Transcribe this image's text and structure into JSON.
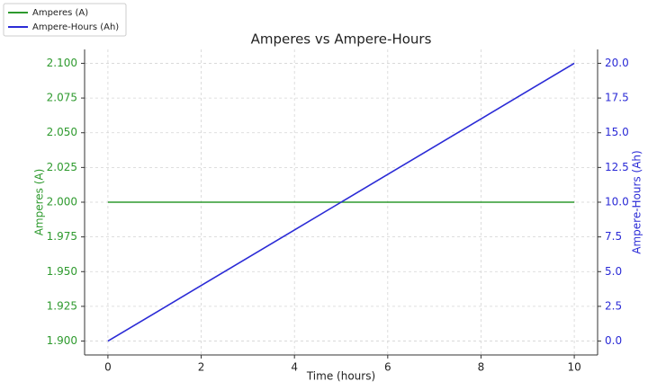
{
  "chart_data": {
    "type": "line",
    "title": "Amperes vs Ampere-Hours",
    "x_label": "Time (hours)",
    "y_label": "Amperes (A)",
    "y2_label": "Ampere-Hours (Ah)",
    "x": [
      0,
      1,
      2,
      3,
      4,
      5,
      6,
      7,
      8,
      9,
      10
    ],
    "series": [
      {
        "name": "Amperes (A)",
        "color": "#2e9a2e",
        "values": [
          2.0,
          2.0,
          2.0,
          2.0,
          2.0,
          2.0,
          2.0,
          2.0,
          2.0,
          2.0,
          2.0
        ]
      },
      {
        "name": "Ampere-Hours (Ah)",
        "color": "#2b2bd6",
        "axis": "y2",
        "values": [
          0,
          2,
          4,
          6,
          8,
          10,
          12,
          14,
          16,
          18,
          20
        ]
      }
    ],
    "xlim": [
      -0.5,
      10.5
    ],
    "xticks": [
      0,
      2,
      4,
      6,
      8,
      10
    ],
    "ylim": [
      1.89,
      2.11
    ],
    "yticks": [
      {
        "value": 1.9,
        "label": "1.900"
      },
      {
        "value": 1.925,
        "label": "1.925"
      },
      {
        "value": 1.95,
        "label": "1.950"
      },
      {
        "value": 1.975,
        "label": "1.975"
      },
      {
        "value": 2.0,
        "label": "2.000"
      },
      {
        "value": 2.025,
        "label": "2.025"
      },
      {
        "value": 2.05,
        "label": "2.050"
      },
      {
        "value": 2.075,
        "label": "2.075"
      },
      {
        "value": 2.1,
        "label": "2.100"
      }
    ],
    "y2lim": [
      -1,
      21
    ],
    "y2ticks": [
      {
        "value": 0,
        "label": "0.0"
      },
      {
        "value": 2.5,
        "label": "2.5"
      },
      {
        "value": 5,
        "label": "5.0"
      },
      {
        "value": 7.5,
        "label": "7.5"
      },
      {
        "value": 10,
        "label": "10.0"
      },
      {
        "value": 12.5,
        "label": "12.5"
      },
      {
        "value": 15,
        "label": "15.0"
      },
      {
        "value": 17.5,
        "label": "17.5"
      },
      {
        "value": 20,
        "label": "20.0"
      }
    ],
    "grid": true,
    "legend": "upper left"
  }
}
